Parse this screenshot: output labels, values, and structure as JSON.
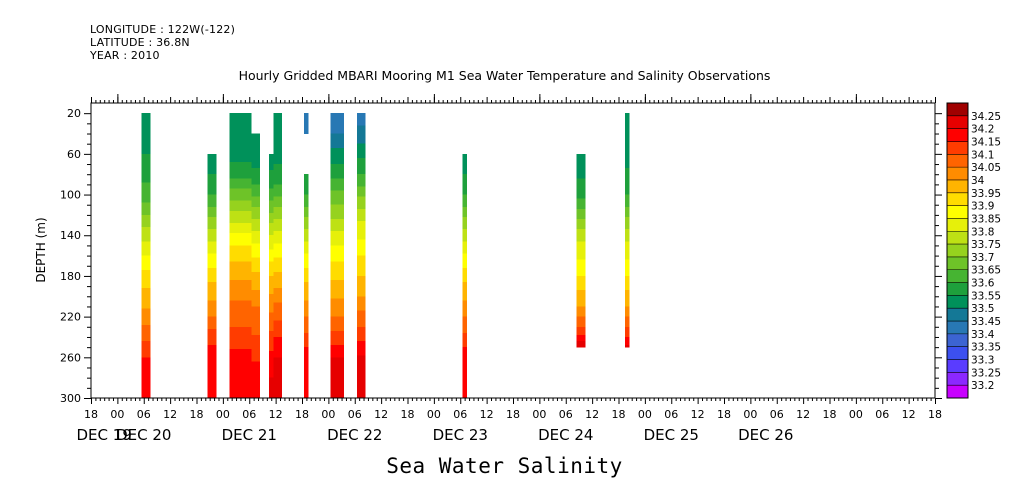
{
  "header": {
    "longitude": "LONGITUDE : 122W(-122)",
    "latitude": "LATITUDE : 36.8N",
    "year": "YEAR : 2010"
  },
  "chart_data": {
    "type": "heatmap",
    "title": "Hourly Gridded MBARI Mooring M1 Sea Water Temperature and Salinity Observations",
    "xlabel": "Sea Water Salinity",
    "ylabel": "DEPTH (m)",
    "x_unit": "hours since 2010-12-19 00:00",
    "xlim": [
      -6,
      186
    ],
    "ylim": [
      300,
      0
    ],
    "y_ticks": [
      20,
      60,
      100,
      140,
      180,
      220,
      260,
      300
    ],
    "x_hour_ticks": [
      {
        "h": -6,
        "label": "18"
      },
      {
        "h": 0,
        "label": "00"
      },
      {
        "h": 6,
        "label": "06"
      },
      {
        "h": 12,
        "label": "12"
      },
      {
        "h": 18,
        "label": "18"
      },
      {
        "h": 24,
        "label": "00"
      },
      {
        "h": 30,
        "label": "06"
      },
      {
        "h": 36,
        "label": "12"
      },
      {
        "h": 42,
        "label": "18"
      },
      {
        "h": 48,
        "label": "00"
      },
      {
        "h": 54,
        "label": "06"
      },
      {
        "h": 60,
        "label": "12"
      },
      {
        "h": 66,
        "label": "18"
      },
      {
        "h": 72,
        "label": "00"
      },
      {
        "h": 78,
        "label": "06"
      },
      {
        "h": 84,
        "label": "12"
      },
      {
        "h": 90,
        "label": "18"
      },
      {
        "h": 96,
        "label": "00"
      },
      {
        "h": 102,
        "label": "06"
      },
      {
        "h": 108,
        "label": "12"
      },
      {
        "h": 114,
        "label": "18"
      },
      {
        "h": 120,
        "label": "00"
      },
      {
        "h": 126,
        "label": "06"
      },
      {
        "h": 132,
        "label": "12"
      },
      {
        "h": 138,
        "label": "18"
      },
      {
        "h": 144,
        "label": "00"
      },
      {
        "h": 150,
        "label": "06"
      },
      {
        "h": 156,
        "label": "12"
      },
      {
        "h": 162,
        "label": "18"
      },
      {
        "h": 168,
        "label": "00"
      },
      {
        "h": 174,
        "label": "06"
      },
      {
        "h": 180,
        "label": "12"
      },
      {
        "h": 186,
        "label": "18"
      }
    ],
    "date_labels": [
      {
        "h": -3,
        "label": "DEC 19"
      },
      {
        "h": 6,
        "label": "DEC 20"
      },
      {
        "h": 30,
        "label": "DEC 21"
      },
      {
        "h": 54,
        "label": "DEC 22"
      },
      {
        "h": 78,
        "label": "DEC 23"
      },
      {
        "h": 102,
        "label": "DEC 24"
      },
      {
        "h": 126,
        "label": "DEC 25"
      },
      {
        "h": 147.5,
        "label": "DEC 26"
      }
    ],
    "colorbar": {
      "levels": [
        "33.2",
        "33.25",
        "33.3",
        "33.35",
        "33.4",
        "33.45",
        "33.5",
        "33.55",
        "33.6",
        "33.65",
        "33.7",
        "33.75",
        "33.8",
        "33.85",
        "33.9",
        "33.95",
        "34",
        "34.05",
        "34.1",
        "34.15",
        "34.2",
        "34.25"
      ],
      "colors": [
        "#c800ff",
        "#8c28ff",
        "#5a3cff",
        "#3c50f0",
        "#3c64d2",
        "#2878b4",
        "#147896",
        "#00915a",
        "#1ea03c",
        "#46b432",
        "#6ec328",
        "#96d21e",
        "#bee114",
        "#e6f00a",
        "#ffff00",
        "#ffdc00",
        "#ffb400",
        "#ff8c00",
        "#ff6400",
        "#ff3c00",
        "#ff0000",
        "#e60000",
        "#a00000"
      ]
    },
    "columns": [
      {
        "x0": 5.5,
        "x1": 7.5,
        "top": 20,
        "bottom": 300,
        "profile": [
          [
            20,
            33.5
          ],
          [
            60,
            33.55
          ],
          [
            100,
            33.62
          ],
          [
            140,
            33.78
          ],
          [
            180,
            33.92
          ],
          [
            220,
            34.02
          ],
          [
            250,
            34.12
          ],
          [
            270,
            34.18
          ],
          [
            300,
            34.18
          ]
        ]
      },
      {
        "x0": 20.5,
        "x1": 22.5,
        "top": 60,
        "bottom": 300,
        "profile": [
          [
            60,
            33.5
          ],
          [
            100,
            33.6
          ],
          [
            140,
            33.78
          ],
          [
            180,
            33.93
          ],
          [
            220,
            34.05
          ],
          [
            240,
            34.13
          ],
          [
            260,
            34.18
          ],
          [
            300,
            34.18
          ]
        ]
      },
      {
        "x0": 25.5,
        "x1": 30.5,
        "top": 20,
        "bottom": 300,
        "profile": [
          [
            20,
            33.5
          ],
          [
            50,
            33.5
          ],
          [
            80,
            33.58
          ],
          [
            110,
            33.72
          ],
          [
            150,
            33.9
          ],
          [
            190,
            34.02
          ],
          [
            230,
            34.1
          ],
          [
            260,
            34.17
          ],
          [
            300,
            34.2
          ]
        ]
      },
      {
        "x0": 30.5,
        "x1": 32.5,
        "top": 40,
        "bottom": 300,
        "profile": [
          [
            40,
            33.5
          ],
          [
            60,
            33.5
          ],
          [
            90,
            33.6
          ],
          [
            130,
            33.78
          ],
          [
            170,
            33.93
          ],
          [
            210,
            34.05
          ],
          [
            250,
            34.12
          ],
          [
            280,
            34.18
          ],
          [
            300,
            34.18
          ]
        ]
      },
      {
        "x0": 34.5,
        "x1": 35.5,
        "top": 60,
        "bottom": 300,
        "profile": [
          [
            60,
            33.5
          ],
          [
            100,
            33.62
          ],
          [
            140,
            33.8
          ],
          [
            180,
            33.95
          ],
          [
            220,
            34.06
          ],
          [
            250,
            34.14
          ],
          [
            280,
            34.2
          ],
          [
            300,
            34.2
          ]
        ]
      },
      {
        "x0": 35.5,
        "x1": 37.5,
        "top": 20,
        "bottom": 300,
        "profile": [
          [
            20,
            33.5
          ],
          [
            50,
            33.5
          ],
          [
            90,
            33.6
          ],
          [
            130,
            33.78
          ],
          [
            170,
            33.93
          ],
          [
            210,
            34.06
          ],
          [
            240,
            34.15
          ],
          [
            260,
            34.2
          ],
          [
            300,
            34.2
          ]
        ]
      },
      {
        "x0": 42.5,
        "x1": 43.5,
        "top": 20,
        "bottom": 40,
        "profile": [
          [
            20,
            33.42
          ],
          [
            40,
            33.45
          ]
        ]
      },
      {
        "x0": 42.5,
        "x1": 43.5,
        "top": 80,
        "bottom": 300,
        "profile": [
          [
            80,
            33.55
          ],
          [
            100,
            33.6
          ],
          [
            140,
            33.78
          ],
          [
            180,
            33.93
          ],
          [
            220,
            34.05
          ],
          [
            250,
            34.15
          ],
          [
            300,
            34.2
          ]
        ]
      },
      {
        "x0": 48.5,
        "x1": 51.5,
        "top": 20,
        "bottom": 300,
        "profile": [
          [
            20,
            33.4
          ],
          [
            40,
            33.45
          ],
          [
            70,
            33.55
          ],
          [
            110,
            33.7
          ],
          [
            150,
            33.85
          ],
          [
            190,
            33.97
          ],
          [
            220,
            34.05
          ],
          [
            240,
            34.12
          ],
          [
            260,
            34.2
          ],
          [
            300,
            34.2
          ]
        ]
      },
      {
        "x0": 54.5,
        "x1": 56.5,
        "top": 20,
        "bottom": 300,
        "profile": [
          [
            20,
            33.42
          ],
          [
            40,
            33.47
          ],
          [
            80,
            33.6
          ],
          [
            120,
            33.78
          ],
          [
            160,
            33.9
          ],
          [
            200,
            34.0
          ],
          [
            230,
            34.1
          ],
          [
            250,
            34.17
          ],
          [
            265,
            34.22
          ],
          [
            300,
            34.2
          ]
        ]
      },
      {
        "x0": 78.5,
        "x1": 79.5,
        "top": 60,
        "bottom": 300,
        "profile": [
          [
            60,
            33.5
          ],
          [
            100,
            33.6
          ],
          [
            140,
            33.78
          ],
          [
            180,
            33.93
          ],
          [
            220,
            34.05
          ],
          [
            250,
            34.15
          ],
          [
            300,
            34.18
          ]
        ]
      },
      {
        "x0": 104.5,
        "x1": 106.5,
        "top": 60,
        "bottom": 250,
        "profile": [
          [
            60,
            33.5
          ],
          [
            100,
            33.58
          ],
          [
            140,
            33.78
          ],
          [
            180,
            33.9
          ],
          [
            210,
            34.0
          ],
          [
            230,
            34.1
          ],
          [
            245,
            34.2
          ],
          [
            250,
            34.22
          ]
        ]
      },
      {
        "x0": 115.5,
        "x1": 116.5,
        "top": 20,
        "bottom": 250,
        "profile": [
          [
            20,
            33.5
          ],
          [
            60,
            33.52
          ],
          [
            100,
            33.6
          ],
          [
            140,
            33.78
          ],
          [
            180,
            33.9
          ],
          [
            210,
            34.0
          ],
          [
            235,
            34.12
          ],
          [
            250,
            34.22
          ]
        ]
      }
    ]
  }
}
